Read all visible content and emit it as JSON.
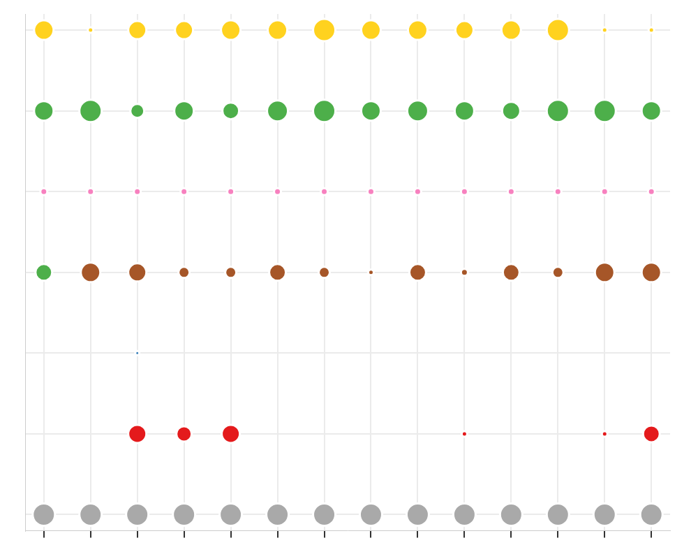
{
  "chart_data": {
    "type": "bubble",
    "grid": true,
    "tick_labels": false,
    "xlim": [
      0.6,
      14.4
    ],
    "ylim": [
      0.8,
      7.2
    ],
    "xticks": [
      1,
      2,
      3,
      4,
      5,
      6,
      7,
      8,
      9,
      10,
      11,
      12,
      13,
      14
    ],
    "yticks": [
      1,
      2,
      3,
      4,
      5,
      6,
      7
    ],
    "series": [
      {
        "color": "#ffd21f",
        "x": [
          1,
          2,
          3,
          4,
          5,
          6,
          7,
          8,
          9,
          10,
          11,
          12,
          13,
          14
        ],
        "y": [
          7,
          7,
          7,
          7,
          7,
          7,
          7,
          7,
          7,
          7,
          7,
          7,
          7,
          7
        ],
        "size": [
          14,
          4,
          13,
          13,
          14,
          14,
          16,
          14,
          14,
          13,
          14,
          16,
          4,
          4
        ]
      },
      {
        "color": "#4daf4a",
        "x": [
          1,
          2,
          3,
          4,
          5,
          6,
          7,
          8,
          9,
          10,
          11,
          12,
          13,
          14,
          1
        ],
        "y": [
          6,
          6,
          6,
          6,
          6,
          6,
          6,
          6,
          6,
          6,
          6,
          6,
          6,
          6,
          4
        ],
        "size": [
          14,
          16,
          10,
          14,
          12,
          15,
          16,
          14,
          15,
          14,
          13,
          16,
          16,
          14,
          12
        ]
      },
      {
        "color": "#f781bf",
        "x": [
          1,
          2,
          3,
          4,
          5,
          6,
          7,
          8,
          9,
          10,
          11,
          12,
          13,
          14
        ],
        "y": [
          5,
          5,
          5,
          5,
          5,
          5,
          5,
          5,
          5,
          5,
          5,
          5,
          5,
          5
        ],
        "size": [
          5,
          5,
          5,
          5,
          5,
          5,
          5,
          5,
          5,
          5,
          5,
          5,
          5,
          5
        ]
      },
      {
        "color": "#a65628",
        "x": [
          2,
          3,
          4,
          5,
          6,
          7,
          8,
          9,
          10,
          11,
          12,
          13,
          14
        ],
        "y": [
          4,
          4,
          4,
          4,
          4,
          4,
          4,
          4,
          4,
          4,
          4,
          4,
          4
        ],
        "size": [
          14,
          13,
          8,
          8,
          12,
          8,
          4,
          12,
          5,
          12,
          8,
          14,
          14
        ]
      },
      {
        "color": "#377eb8",
        "x": [
          3
        ],
        "y": [
          3
        ],
        "size": [
          3
        ]
      },
      {
        "color": "#e41a1c",
        "x": [
          3,
          4,
          5,
          10,
          13,
          14
        ],
        "y": [
          2,
          2,
          2,
          2,
          2,
          2
        ],
        "size": [
          13,
          11,
          13,
          4,
          4,
          12
        ]
      },
      {
        "color": "#a9a9a9",
        "x": [
          1,
          2,
          3,
          4,
          5,
          6,
          7,
          8,
          9,
          10,
          11,
          12,
          13,
          14
        ],
        "y": [
          1,
          1,
          1,
          1,
          1,
          1,
          1,
          1,
          1,
          1,
          1,
          1,
          1,
          1
        ],
        "size": [
          16,
          16,
          16,
          16,
          16,
          16,
          16,
          16,
          16,
          16,
          16,
          16,
          16,
          16
        ]
      }
    ]
  }
}
